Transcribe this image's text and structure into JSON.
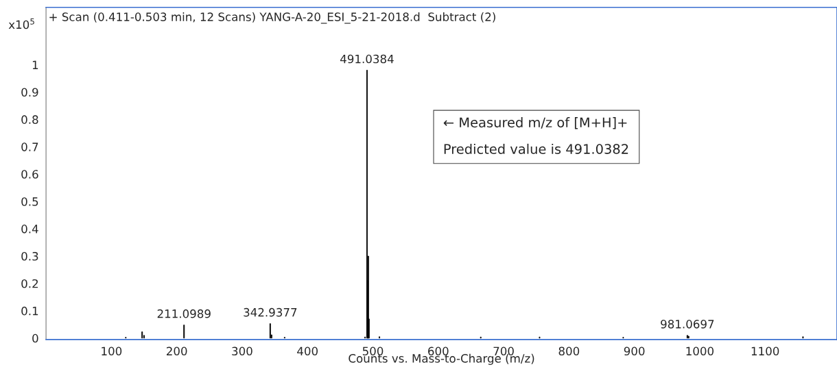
{
  "chart_data": {
    "type": "bar",
    "title": "+ Scan (0.411-0.503 min, 12 Scans) YANG-A-20_ESI_5-21-2018.d  Subtract (2)",
    "xlabel": "Counts vs. Mass-to-Charge (m/z)",
    "ylabel": "x10$^{5}$",
    "x": [
      122,
      147,
      150,
      211.1,
      342.94,
      345,
      365,
      488,
      491.04,
      492,
      493,
      494,
      510,
      665,
      755,
      883,
      981.07,
      983,
      1158
    ],
    "values": [
      0.003,
      0.023,
      0.01,
      0.048,
      0.053,
      0.012,
      0.003,
      0.004,
      0.98,
      0.21,
      0.3,
      0.07,
      0.005,
      0.004,
      0.004,
      0.003,
      0.01,
      0.007,
      0.005
    ],
    "color": "#000000",
    "xlim": [
      0,
      1210
    ],
    "ylim": [
      -0.005,
      1.21
    ],
    "xticks": [
      100,
      200,
      300,
      400,
      500,
      600,
      700,
      800,
      900,
      1000,
      1100
    ],
    "yticks": [
      0,
      0.1,
      0.2,
      0.3,
      0.4,
      0.5,
      0.6,
      0.7,
      0.8,
      0.9,
      1
    ],
    "grid": false,
    "annotations": [
      {
        "text": "491.0384",
        "x": 491.04,
        "y": 0.98
      },
      {
        "text": "211.0989",
        "x": 211.1,
        "y": 0.048
      },
      {
        "text": "342.9377",
        "x": 342.94,
        "y": 0.053
      },
      {
        "text": "981.0697",
        "x": 981.07,
        "y": 0.01
      },
      "← Measured m/z of [M+H]+",
      "Predicted value is 491.0382"
    ]
  }
}
